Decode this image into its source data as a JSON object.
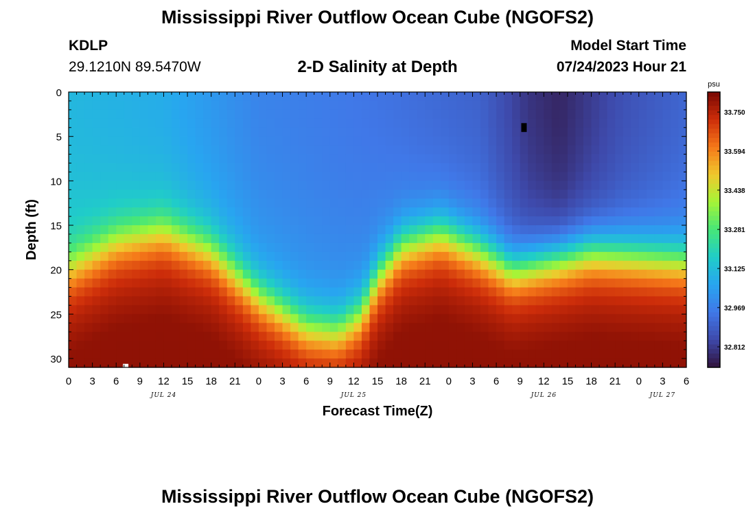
{
  "header": {
    "title": "Mississippi River Outflow Ocean Cube (NGOFS2)",
    "station_id": "KDLP",
    "coordinates": "29.1210N  89.5470W",
    "subtitle": "2-D Salinity at Depth",
    "model_start_label": "Model Start Time",
    "model_start_value": "07/24/2023 Hour 21"
  },
  "footer": {
    "title": "Mississippi River Outflow Ocean Cube (NGOFS2)"
  },
  "chart_data": {
    "type": "heatmap",
    "title": "2-D Salinity at Depth",
    "xlabel": "Forecast Time(Z)",
    "ylabel": "Depth (ft)",
    "x_tick_labels": [
      "0",
      "3",
      "6",
      "9",
      "12",
      "15",
      "18",
      "21",
      "0",
      "3",
      "6",
      "9",
      "12",
      "15",
      "18",
      "21",
      "0",
      "3",
      "6",
      "9",
      "12",
      "15",
      "18",
      "21",
      "0",
      "3",
      "6"
    ],
    "date_labels": [
      {
        "label": "JUL 24",
        "at_hour": 12
      },
      {
        "label": "JUL 25",
        "at_hour": 36
      },
      {
        "label": "JUL 26",
        "at_hour": 60
      },
      {
        "label": "JUL 27",
        "at_hour": 75
      }
    ],
    "xlim": [
      0,
      78
    ],
    "y_ticks": [
      0,
      5,
      10,
      15,
      20,
      25,
      30
    ],
    "ylim": [
      0,
      31
    ],
    "y_inverted": true,
    "colorbar": {
      "unit": "psu",
      "tick_values": [
        33.75,
        33.594,
        33.438,
        33.281,
        33.125,
        32.969,
        32.812
      ],
      "tick_labels": [
        "33.750",
        "33.594",
        "33.438",
        "33.281",
        "33.125",
        "32.969",
        "32.812"
      ],
      "range": [
        32.73,
        33.83
      ]
    },
    "interface_depth_ft": [
      {
        "hour": 0,
        "depth": 21.5
      },
      {
        "hour": 6,
        "depth": 18.5
      },
      {
        "hour": 12,
        "depth": 17.3
      },
      {
        "hour": 18,
        "depth": 19.5
      },
      {
        "hour": 24,
        "depth": 24.5
      },
      {
        "hour": 30,
        "depth": 28
      },
      {
        "hour": 34,
        "depth": 28.5
      },
      {
        "hour": 37,
        "depth": 26.5
      },
      {
        "hour": 39,
        "depth": 22.5
      },
      {
        "hour": 42,
        "depth": 19
      },
      {
        "hour": 47,
        "depth": 17.5
      },
      {
        "hour": 52,
        "depth": 19.5
      },
      {
        "hour": 56,
        "depth": 21.5
      },
      {
        "hour": 61,
        "depth": 20.5
      },
      {
        "hour": 66,
        "depth": 19.5
      },
      {
        "hour": 72,
        "depth": 20
      },
      {
        "hour": 78,
        "depth": 20.5
      }
    ],
    "surface_salinity_psu": [
      {
        "hour": 0,
        "value": 33.11
      },
      {
        "hour": 12,
        "value": 33.08
      },
      {
        "hour": 24,
        "value": 32.98
      },
      {
        "hour": 40,
        "value": 32.94
      },
      {
        "hour": 52,
        "value": 32.9
      },
      {
        "hour": 58,
        "value": 32.8
      },
      {
        "hour": 62,
        "value": 32.77
      },
      {
        "hour": 70,
        "value": 32.86
      },
      {
        "hour": 78,
        "value": 32.91
      }
    ],
    "minimum_cell": {
      "hour": 57.5,
      "depth_range": [
        3.5,
        4.5
      ]
    },
    "maximum_cell": {
      "hour": 7.2,
      "depth_range": [
        30.6,
        31
      ]
    }
  }
}
